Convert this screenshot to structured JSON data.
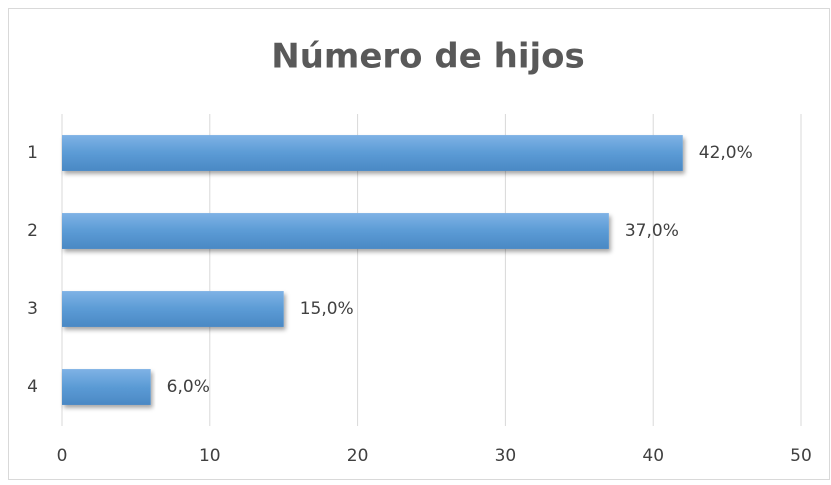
{
  "chart_data": {
    "type": "bar",
    "orientation": "horizontal",
    "title": "Número de hijos",
    "categories": [
      "1",
      "2",
      "3",
      "4"
    ],
    "values": [
      42,
      37,
      15,
      6
    ],
    "value_labels": [
      "42,0%",
      "37,0%",
      "15,0%",
      "6,0%"
    ],
    "color": "#5b9bd5",
    "xlim": [
      0,
      50
    ],
    "xticks": [
      0,
      10,
      20,
      30,
      40,
      50
    ],
    "grid": true
  }
}
